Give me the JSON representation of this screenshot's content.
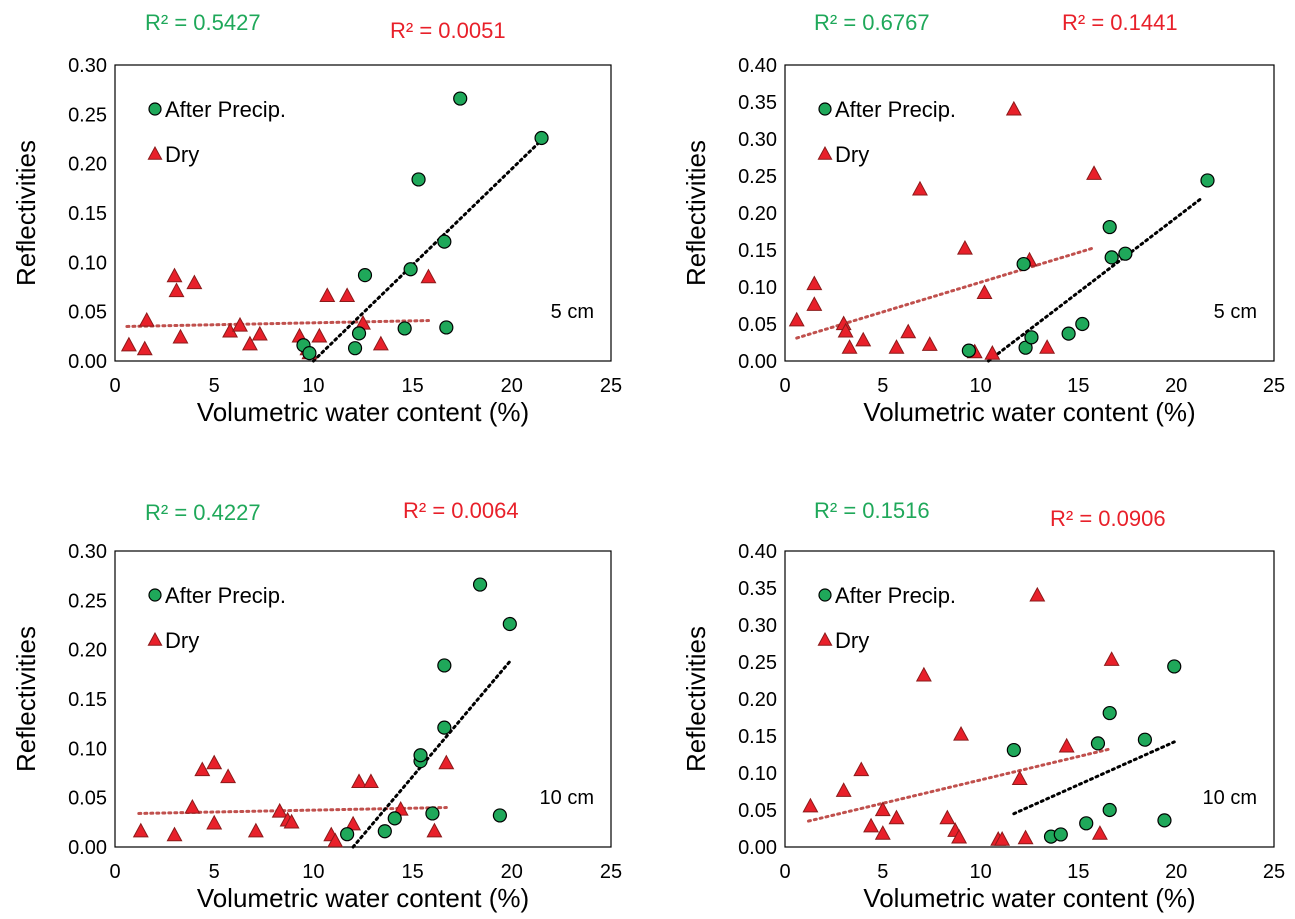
{
  "colors": {
    "after": "#1fa85a",
    "dry": "#e8202a",
    "after_trend": "#000000",
    "dry_trend": "#c0504d",
    "r2_after": "#1fa85a",
    "r2_dry": "#e8202a",
    "marker_stroke": "#000000",
    "dry_stroke": "#8b1a1a"
  },
  "chart_data": [
    {
      "type": "scatter",
      "r2_after": "R² = 0.5427",
      "r2_dry": "R² = 0.0051",
      "xlabel": "Volumetric water content (%)",
      "ylabel": "Reflectivities",
      "xlim": [
        0,
        25
      ],
      "ylim": [
        0,
        0.3
      ],
      "xticks": [
        "0",
        "5",
        "10",
        "15",
        "20",
        "25"
      ],
      "yticks": [
        "0.00",
        "0.05",
        "0.10",
        "0.15",
        "0.20",
        "0.25",
        "0.30"
      ],
      "depth_label": "5 cm",
      "legend": [
        "After Precip.",
        "Dry"
      ],
      "legend_position": "top-left",
      "series": [
        {
          "name": "After Precip.",
          "marker": "circle",
          "points": [
            [
              9.5,
              0.016
            ],
            [
              9.8,
              0.008
            ],
            [
              12.1,
              0.013
            ],
            [
              12.3,
              0.028
            ],
            [
              12.6,
              0.087
            ],
            [
              14.6,
              0.033
            ],
            [
              14.9,
              0.093
            ],
            [
              15.3,
              0.184
            ],
            [
              16.6,
              0.121
            ],
            [
              16.7,
              0.034
            ],
            [
              17.4,
              0.266
            ],
            [
              21.5,
              0.226
            ]
          ],
          "trend": {
            "x": [
              10.0,
              21.3
            ],
            "y": [
              0.0,
              0.22
            ]
          }
        },
        {
          "name": "Dry",
          "marker": "triangle",
          "points": [
            [
              0.7,
              0.016
            ],
            [
              1.5,
              0.012
            ],
            [
              1.6,
              0.041
            ],
            [
              3.0,
              0.086
            ],
            [
              3.1,
              0.071
            ],
            [
              3.3,
              0.024
            ],
            [
              4.0,
              0.079
            ],
            [
              5.8,
              0.03
            ],
            [
              6.3,
              0.036
            ],
            [
              6.8,
              0.017
            ],
            [
              7.3,
              0.027
            ],
            [
              9.3,
              0.025
            ],
            [
              9.7,
              0.012
            ],
            [
              9.8,
              0.008
            ],
            [
              10.3,
              0.025
            ],
            [
              10.7,
              0.066
            ],
            [
              11.7,
              0.066
            ],
            [
              12.5,
              0.038
            ],
            [
              13.4,
              0.017
            ],
            [
              15.8,
              0.085
            ]
          ],
          "trend": {
            "x": [
              0.6,
              15.8
            ],
            "y": [
              0.035,
              0.041
            ]
          }
        }
      ]
    },
    {
      "type": "scatter",
      "r2_after": "R² = 0.6767",
      "r2_dry": "R² = 0.1441",
      "xlabel": "Volumetric water content (%)",
      "ylabel": "Reflectivities",
      "xlim": [
        0,
        25
      ],
      "ylim": [
        0,
        0.4
      ],
      "xticks": [
        "0",
        "5",
        "10",
        "15",
        "20",
        "25"
      ],
      "yticks": [
        "0.00",
        "0.05",
        "0.10",
        "0.15",
        "0.20",
        "0.25",
        "0.30",
        "0.35",
        "0.40"
      ],
      "depth_label": "5 cm",
      "legend": [
        "After Precip.",
        "Dry"
      ],
      "legend_position": "top-left",
      "series": [
        {
          "name": "After Precip.",
          "marker": "circle",
          "points": [
            [
              9.4,
              0.014
            ],
            [
              12.2,
              0.131
            ],
            [
              12.3,
              0.018
            ],
            [
              12.6,
              0.032
            ],
            [
              14.5,
              0.037
            ],
            [
              15.2,
              0.05
            ],
            [
              16.6,
              0.181
            ],
            [
              16.7,
              0.14
            ],
            [
              17.4,
              0.145
            ],
            [
              21.6,
              0.244
            ]
          ],
          "trend": {
            "x": [
              10.4,
              21.3
            ],
            "y": [
              0.0,
              0.22
            ]
          }
        },
        {
          "name": "Dry",
          "marker": "triangle",
          "points": [
            [
              0.6,
              0.055
            ],
            [
              1.5,
              0.104
            ],
            [
              1.5,
              0.076
            ],
            [
              3.0,
              0.05
            ],
            [
              3.1,
              0.04
            ],
            [
              3.3,
              0.018
            ],
            [
              4.0,
              0.028
            ],
            [
              5.7,
              0.018
            ],
            [
              6.3,
              0.039
            ],
            [
              6.9,
              0.232
            ],
            [
              7.4,
              0.022
            ],
            [
              9.2,
              0.152
            ],
            [
              9.7,
              0.012
            ],
            [
              10.2,
              0.092
            ],
            [
              10.6,
              0.01
            ],
            [
              11.7,
              0.34
            ],
            [
              12.5,
              0.136
            ],
            [
              13.4,
              0.018
            ],
            [
              15.8,
              0.253
            ]
          ],
          "trend": {
            "x": [
              0.6,
              15.8
            ],
            "y": [
              0.031,
              0.153
            ]
          }
        }
      ]
    },
    {
      "type": "scatter",
      "r2_after": "R² = 0.4227",
      "r2_dry": "R² = 0.0064",
      "xlabel": "Volumetric water content (%)",
      "ylabel": "Reflectivities",
      "xlim": [
        0,
        25
      ],
      "ylim": [
        0,
        0.3
      ],
      "xticks": [
        "0",
        "5",
        "10",
        "15",
        "20",
        "25"
      ],
      "yticks": [
        "0.00",
        "0.05",
        "0.10",
        "0.15",
        "0.20",
        "0.25",
        "0.30"
      ],
      "depth_label": "10 cm",
      "legend": [
        "After Precip.",
        "Dry"
      ],
      "legend_position": "top-left",
      "series": [
        {
          "name": "After Precip.",
          "marker": "circle",
          "points": [
            [
              11.7,
              0.013
            ],
            [
              13.6,
              0.016
            ],
            [
              14.1,
              0.029
            ],
            [
              15.4,
              0.087
            ],
            [
              15.4,
              0.093
            ],
            [
              16.0,
              0.034
            ],
            [
              16.6,
              0.184
            ],
            [
              16.6,
              0.121
            ],
            [
              18.4,
              0.266
            ],
            [
              19.4,
              0.032
            ],
            [
              19.9,
              0.226
            ]
          ],
          "trend": {
            "x": [
              12.0,
              19.9
            ],
            "y": [
              0.0,
              0.188
            ]
          }
        },
        {
          "name": "Dry",
          "marker": "triangle",
          "points": [
            [
              1.3,
              0.016
            ],
            [
              3.0,
              0.012
            ],
            [
              3.9,
              0.04
            ],
            [
              4.4,
              0.078
            ],
            [
              5.0,
              0.085
            ],
            [
              5.0,
              0.024
            ],
            [
              5.7,
              0.071
            ],
            [
              7.1,
              0.016
            ],
            [
              8.3,
              0.036
            ],
            [
              8.7,
              0.027
            ],
            [
              8.9,
              0.025
            ],
            [
              10.9,
              0.012
            ],
            [
              11.1,
              0.006
            ],
            [
              12.0,
              0.023
            ],
            [
              12.3,
              0.066
            ],
            [
              12.9,
              0.066
            ],
            [
              14.4,
              0.038
            ],
            [
              16.1,
              0.016
            ],
            [
              16.7,
              0.085
            ]
          ],
          "trend": {
            "x": [
              1.2,
              16.7
            ],
            "y": [
              0.034,
              0.04
            ]
          }
        }
      ]
    },
    {
      "type": "scatter",
      "r2_after": "R² = 0.1516",
      "r2_dry": "R² = 0.0906",
      "xlabel": "Volumetric water content (%)",
      "ylabel": "Reflectivities",
      "xlim": [
        0,
        25
      ],
      "ylim": [
        0,
        0.4
      ],
      "xticks": [
        "0",
        "5",
        "10",
        "15",
        "20",
        "25"
      ],
      "yticks": [
        "0.00",
        "0.05",
        "0.10",
        "0.15",
        "0.20",
        "0.25",
        "0.30",
        "0.35",
        "0.40"
      ],
      "depth_label": "10 cm",
      "legend": [
        "After Precip.",
        "Dry"
      ],
      "legend_position": "top-left",
      "series": [
        {
          "name": "After Precip.",
          "marker": "circle",
          "points": [
            [
              11.7,
              0.131
            ],
            [
              13.6,
              0.014
            ],
            [
              14.1,
              0.017
            ],
            [
              15.4,
              0.032
            ],
            [
              16.0,
              0.14
            ],
            [
              16.6,
              0.181
            ],
            [
              16.6,
              0.05
            ],
            [
              18.4,
              0.145
            ],
            [
              19.4,
              0.036
            ],
            [
              19.9,
              0.244
            ]
          ],
          "trend": {
            "x": [
              11.7,
              19.9
            ],
            "y": [
              0.045,
              0.142
            ]
          }
        },
        {
          "name": "Dry",
          "marker": "triangle",
          "points": [
            [
              1.3,
              0.055
            ],
            [
              3.0,
              0.076
            ],
            [
              3.9,
              0.104
            ],
            [
              4.4,
              0.028
            ],
            [
              5.0,
              0.05
            ],
            [
              5.0,
              0.018
            ],
            [
              5.7,
              0.039
            ],
            [
              7.1,
              0.232
            ],
            [
              8.3,
              0.039
            ],
            [
              8.7,
              0.022
            ],
            [
              8.9,
              0.013
            ],
            [
              9.0,
              0.152
            ],
            [
              10.9,
              0.01
            ],
            [
              11.1,
              0.01
            ],
            [
              12.0,
              0.092
            ],
            [
              12.3,
              0.012
            ],
            [
              12.9,
              0.34
            ],
            [
              14.4,
              0.136
            ],
            [
              16.1,
              0.018
            ],
            [
              16.7,
              0.253
            ]
          ],
          "trend": {
            "x": [
              1.2,
              16.7
            ],
            "y": [
              0.035,
              0.133
            ]
          }
        }
      ]
    }
  ]
}
